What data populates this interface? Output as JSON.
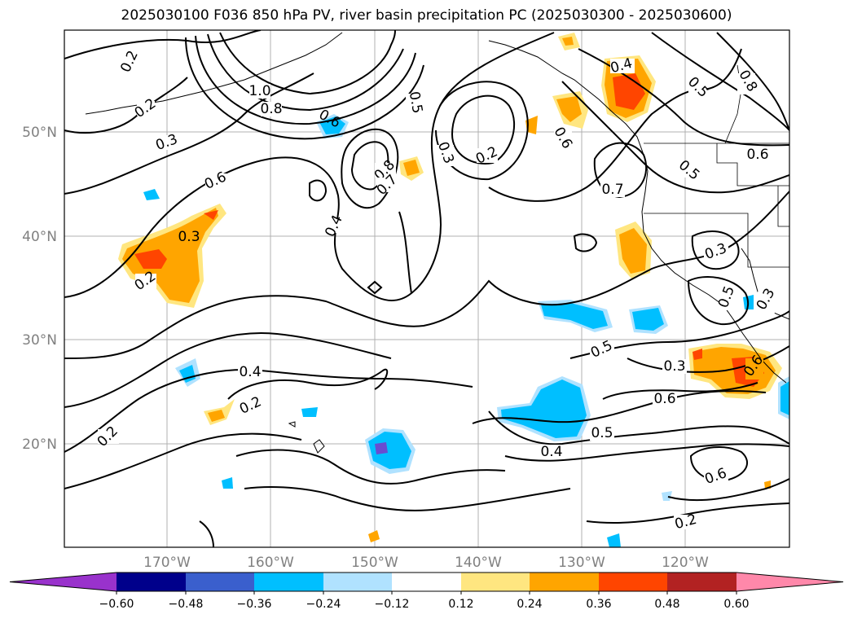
{
  "title": "2025030100 F036 850 hPa PV, river basin precipitation PC (2025030300 - 2025030600)",
  "map": {
    "lat_labels": [
      "50°N",
      "40°N",
      "30°N",
      "20°N"
    ],
    "lon_labels": [
      "170°W",
      "160°W",
      "150°W",
      "140°W",
      "130°W",
      "120°W"
    ],
    "contour_labels": [
      "0.2",
      "0.2",
      "1.0",
      "0.8",
      "0.3",
      "0.6",
      "0.3",
      "0.2",
      "0.4",
      "0.2",
      "0.2",
      "0.6",
      "0.8",
      "0.7",
      "0.4",
      "0.5",
      "0.3",
      "0.2",
      "0.6",
      "0.7",
      "0.4",
      "0.5",
      "0.8",
      "0.5",
      "0.6",
      "0.3",
      "0.5",
      "0.3",
      "0.5",
      "0.3",
      "0.6",
      "0.6",
      "0.5",
      "0.4",
      "0.6",
      "0.2"
    ],
    "colors": {
      "contour": "#000000",
      "grid": "#b0b0b0",
      "coast": "#000000"
    }
  },
  "colorbar": {
    "ticks": [
      "−0.60",
      "−0.48",
      "−0.36",
      "−0.24",
      "−0.12",
      "0.12",
      "0.24",
      "0.36",
      "0.48",
      "0.60"
    ],
    "colors": [
      "#9932cc",
      "#00008b",
      "#3a5fcd",
      "#00bfff",
      "#b0e2ff",
      "#ffffff",
      "#ffe680",
      "#ffa500",
      "#ff4500",
      "#b22222",
      "#ff88aa"
    ]
  }
}
